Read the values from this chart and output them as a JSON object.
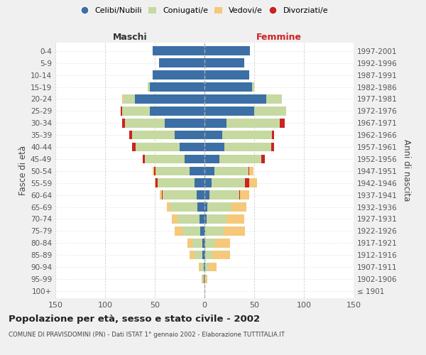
{
  "age_groups": [
    "100+",
    "95-99",
    "90-94",
    "85-89",
    "80-84",
    "75-79",
    "70-74",
    "65-69",
    "60-64",
    "55-59",
    "50-54",
    "45-49",
    "40-44",
    "35-39",
    "30-34",
    "25-29",
    "20-24",
    "15-19",
    "10-14",
    "5-9",
    "0-4"
  ],
  "birth_years": [
    "≤ 1901",
    "1902-1906",
    "1907-1911",
    "1912-1916",
    "1917-1921",
    "1922-1926",
    "1927-1931",
    "1932-1936",
    "1937-1941",
    "1942-1946",
    "1947-1951",
    "1952-1956",
    "1957-1961",
    "1962-1966",
    "1967-1971",
    "1972-1976",
    "1977-1981",
    "1982-1986",
    "1987-1991",
    "1992-1996",
    "1997-2001"
  ],
  "males": {
    "celibi": [
      0,
      1,
      1,
      2,
      2,
      4,
      5,
      7,
      8,
      10,
      15,
      20,
      25,
      30,
      40,
      55,
      70,
      55,
      52,
      46,
      52
    ],
    "coniugati": [
      0,
      1,
      3,
      8,
      10,
      18,
      22,
      27,
      34,
      37,
      34,
      40,
      44,
      43,
      40,
      28,
      12,
      2,
      0,
      0,
      0
    ],
    "vedovi": [
      0,
      1,
      2,
      5,
      5,
      8,
      6,
      4,
      2,
      1,
      1,
      0,
      0,
      0,
      0,
      0,
      1,
      0,
      0,
      0,
      0
    ],
    "divorziati": [
      0,
      0,
      0,
      0,
      0,
      0,
      0,
      0,
      1,
      2,
      2,
      2,
      4,
      3,
      3,
      1,
      0,
      0,
      0,
      0,
      0
    ]
  },
  "females": {
    "nubili": [
      0,
      0,
      1,
      1,
      1,
      1,
      2,
      3,
      5,
      7,
      10,
      15,
      20,
      18,
      22,
      50,
      62,
      48,
      45,
      40,
      46
    ],
    "coniugate": [
      0,
      1,
      3,
      7,
      10,
      18,
      20,
      24,
      30,
      34,
      34,
      42,
      47,
      50,
      54,
      32,
      16,
      2,
      0,
      0,
      0
    ],
    "vedove": [
      1,
      2,
      8,
      18,
      15,
      22,
      18,
      15,
      9,
      8,
      4,
      0,
      0,
      0,
      0,
      0,
      0,
      0,
      0,
      0,
      0
    ],
    "divorziate": [
      0,
      0,
      0,
      0,
      0,
      0,
      0,
      0,
      1,
      4,
      1,
      4,
      3,
      2,
      5,
      0,
      0,
      0,
      0,
      0,
      0
    ]
  },
  "colors": {
    "celibi": "#3c6fa5",
    "coniugati": "#c5d9a0",
    "vedovi": "#f5c87a",
    "divorziati": "#cc2222"
  },
  "xlim": 150,
  "title": "Popolazione per età, sesso e stato civile - 2002",
  "subtitle": "COMUNE DI PRAVISDOMINI (PN) - Dati ISTAT 1° gennaio 2002 - Elaborazione TUTTITALIA.IT",
  "ylabel_left": "Fasce di età",
  "ylabel_right": "Anni di nascita",
  "xlabel_left": "Maschi",
  "xlabel_right": "Femmine",
  "bg_color": "#f0f0f0",
  "plot_bg": "#ffffff",
  "legend_labels": [
    "Celibi/Nubili",
    "Coniugati/e",
    "Vedovi/e",
    "Divorziati/e"
  ]
}
